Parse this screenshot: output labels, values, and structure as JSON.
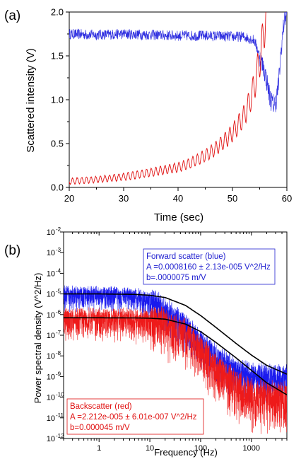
{
  "panels": {
    "a": {
      "label": "(a)"
    },
    "b": {
      "label": "(b)"
    }
  },
  "chart_data": [
    {
      "type": "line",
      "panel": "(a)",
      "xlabel": "Time (sec)",
      "ylabel": "Scattered intensity (V)",
      "xlim": [
        20,
        60
      ],
      "ylim": [
        0,
        2.0
      ],
      "xticks": [
        "20",
        "30",
        "40",
        "50",
        "60"
      ],
      "yticks": [
        "0.0",
        "0.5",
        "1.0",
        "1.5",
        "2.0"
      ],
      "series": [
        {
          "color": "#3030e0",
          "x": [
            20,
            25,
            30,
            35,
            40,
            45,
            50,
            52,
            54,
            55,
            56,
            57,
            57.5,
            58,
            58.5,
            59,
            59.5,
            60
          ],
          "y": [
            1.75,
            1.74,
            1.75,
            1.74,
            1.73,
            1.73,
            1.72,
            1.72,
            1.68,
            1.5,
            1.3,
            1.0,
            0.95,
            0.98,
            1.2,
            1.6,
            1.9,
            2.0
          ]
        },
        {
          "color": "#e01010",
          "x": [
            20,
            25,
            30,
            35,
            40,
            42,
            44,
            46,
            48,
            50,
            52,
            53,
            54,
            55,
            55.5,
            56,
            56.3
          ],
          "y": [
            0.07,
            0.09,
            0.12,
            0.17,
            0.23,
            0.27,
            0.33,
            0.4,
            0.5,
            0.62,
            0.8,
            0.95,
            1.15,
            1.45,
            1.65,
            1.9,
            2.0
          ]
        }
      ]
    },
    {
      "type": "line",
      "panel": "(b)",
      "xlabel": "Frequency (Hz)",
      "ylabel": "Power spectral density (V^2/Hz)",
      "xscale": "log",
      "yscale": "log",
      "xlim": [
        0.2,
        5000
      ],
      "ylim": [
        1e-12,
        0.01
      ],
      "xticks": [
        "1",
        "10",
        "100",
        "1000"
      ],
      "yticks_exp": [
        "-2",
        "-3",
        "-4",
        "-5",
        "-6",
        "-7",
        "-8",
        "-9",
        "-10",
        "-11",
        "-12"
      ],
      "ytick_base": "10",
      "series": [
        {
          "color": "#1a1aee",
          "x": [
            0.2,
            0.5,
            1,
            2,
            5,
            10,
            20,
            50,
            100,
            200,
            500,
            1000,
            5000
          ],
          "y": [
            1e-05,
            1e-05,
            1e-05,
            9.5e-06,
            8e-06,
            5e-06,
            2e-06,
            3e-07,
            5e-08,
            1e-08,
            2e-09,
            1.2e-09,
            1e-09
          ]
        },
        {
          "color": "#ee1a1a",
          "x": [
            0.2,
            0.5,
            1,
            2,
            5,
            10,
            20,
            50,
            100,
            200,
            500,
            1000,
            5000
          ],
          "y": [
            7e-07,
            7e-07,
            7e-07,
            7e-07,
            6.5e-07,
            6e-07,
            4e-07,
            1.2e-07,
            2e-08,
            3e-09,
            4e-10,
            1.5e-10,
            1e-10
          ]
        },
        {
          "color": "#000000",
          "x": [
            0.2,
            1,
            5,
            10,
            20,
            50,
            100,
            200,
            500,
            1000,
            2000,
            5000
          ],
          "y": [
            1e-05,
            1e-05,
            9.5e-06,
            8.6e-06,
            6.7e-06,
            2.8e-06,
            9e-07,
            2.4e-07,
            4e-08,
            1.1e-08,
            3.5e-09,
            1.3e-09
          ]
        },
        {
          "color": "#000000",
          "x": [
            0.2,
            1,
            5,
            10,
            20,
            50,
            100,
            200,
            500,
            1000,
            2000,
            5000
          ],
          "y": [
            7e-07,
            7e-07,
            6.9e-07,
            6.7e-07,
            6e-07,
            3.5e-07,
            1.5e-07,
            4.5e-08,
            8e-09,
            2e-09,
            5e-10,
            1.3e-10
          ]
        }
      ],
      "annotations": [
        {
          "color": "#2020d0",
          "lines": [
            "Forward scatter (blue)",
            "A =0.0008160 ± 2.13e-005 V^2/Hz",
            "b=.0000075 m/V"
          ]
        },
        {
          "color": "#e01010",
          "lines": [
            "Backscatter (red)",
            "A =2.212e-005 ± 6.01e-007 V^2/Hz",
            "b=0.000045 m/V"
          ]
        }
      ]
    }
  ]
}
